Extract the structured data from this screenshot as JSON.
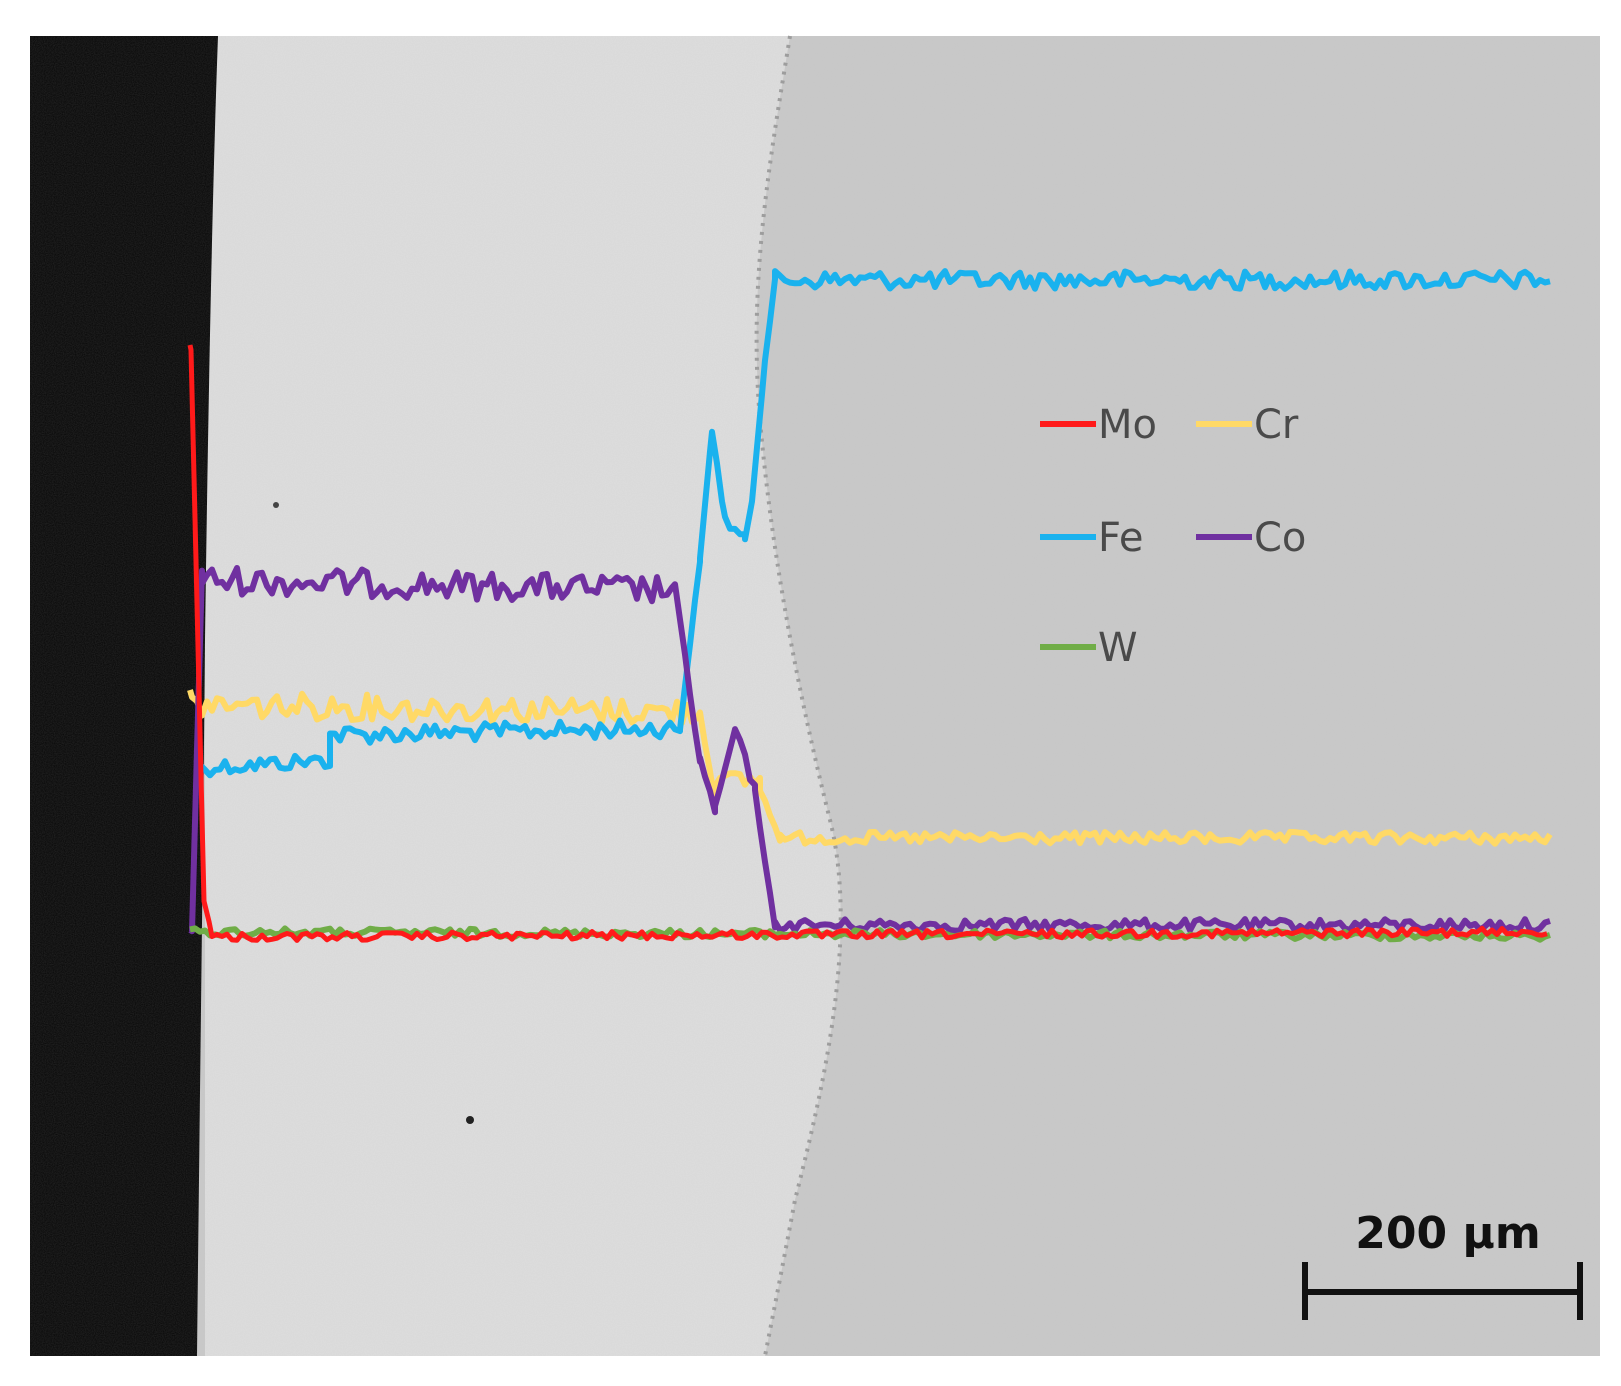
{
  "legend": {
    "items": [
      {
        "key": "Mo",
        "label": "Mo",
        "color": "#ff1a1a"
      },
      {
        "key": "Cr",
        "label": "Cr",
        "color": "#ffd966"
      },
      {
        "key": "Fe",
        "label": "Fe",
        "color": "#1ab2ee"
      },
      {
        "key": "Co",
        "label": "Co",
        "color": "#7030a0"
      },
      {
        "key": "W",
        "label": "W",
        "color": "#70ad47"
      }
    ]
  },
  "scale_bar": {
    "label": "200 µm"
  },
  "colors": {
    "mount": "#050505",
    "coating_phase": "#dedede",
    "substrate_phase": "#c9c9c9",
    "page": "#ffffff"
  }
}
